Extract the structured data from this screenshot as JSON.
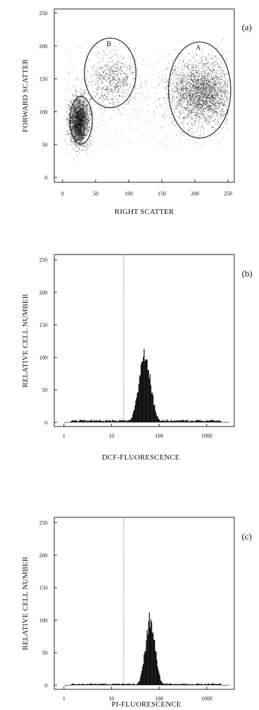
{
  "chart_data": [
    {
      "panel": "(a)",
      "type": "scatter",
      "xlabel": "RIGHT SCATTER",
      "ylabel": "FORWARD SCATTER",
      "xlim": [
        0,
        250
      ],
      "ylim": [
        0,
        250
      ],
      "x_ticks": [
        "0",
        "50",
        "100",
        "150",
        "200",
        "250"
      ],
      "y_ticks": [
        "0",
        "50",
        "100",
        "150",
        "200",
        "250"
      ],
      "gates": [
        {
          "name": "A",
          "cx": 207,
          "cy": 133,
          "rx": 47,
          "ry": 73
        },
        {
          "name": "B",
          "cx": 72,
          "cy": 159,
          "rx": 39,
          "ry": 53
        },
        {
          "name": "",
          "cx": 28,
          "cy": 87,
          "rx": 17,
          "ry": 36
        }
      ],
      "clusters": [
        {
          "gate": "A",
          "x_center": 210,
          "y_center": 128,
          "x_spread": 24,
          "y_spread": 24,
          "relative_density": "very high"
        },
        {
          "gate": "B",
          "x_center": 75,
          "y_center": 148,
          "x_spread": 18,
          "y_spread": 20,
          "relative_density": "medium"
        },
        {
          "gate": "",
          "x_center": 25,
          "y_center": 85,
          "x_spread": 7,
          "y_spread": 17,
          "relative_density": "very high"
        }
      ]
    },
    {
      "panel": "(b)",
      "type": "area",
      "xlabel": "DCF-FLUORESCENCE",
      "ylabel": "RELATIVE CELL NUMBER",
      "x_scale": "log",
      "xlim": [
        1,
        3000
      ],
      "ylim": [
        0,
        255
      ],
      "x_ticks": [
        "1",
        "10",
        "100",
        "1000"
      ],
      "y_ticks": [
        "0",
        "50",
        "100",
        "150",
        "200",
        "250"
      ],
      "marker_x": 18,
      "peak": {
        "x": 50,
        "y": 110,
        "log_sd": 0.12
      },
      "baseline": 3
    },
    {
      "panel": "(c)",
      "type": "area",
      "xlabel": "PI-FLUORESCENCE",
      "ylabel": "RELATIVE CELL NUMBER",
      "x_scale": "log",
      "xlim": [
        1,
        3000
      ],
      "ylim": [
        0,
        255
      ],
      "x_ticks": [
        "1",
        "10",
        "100",
        "1000"
      ],
      "y_ticks": [
        "0",
        "50",
        "100",
        "150",
        "200",
        "250"
      ],
      "marker_x": 18,
      "peak": {
        "x": 65,
        "y": 103,
        "log_sd": 0.1
      },
      "baseline": 2
    }
  ]
}
